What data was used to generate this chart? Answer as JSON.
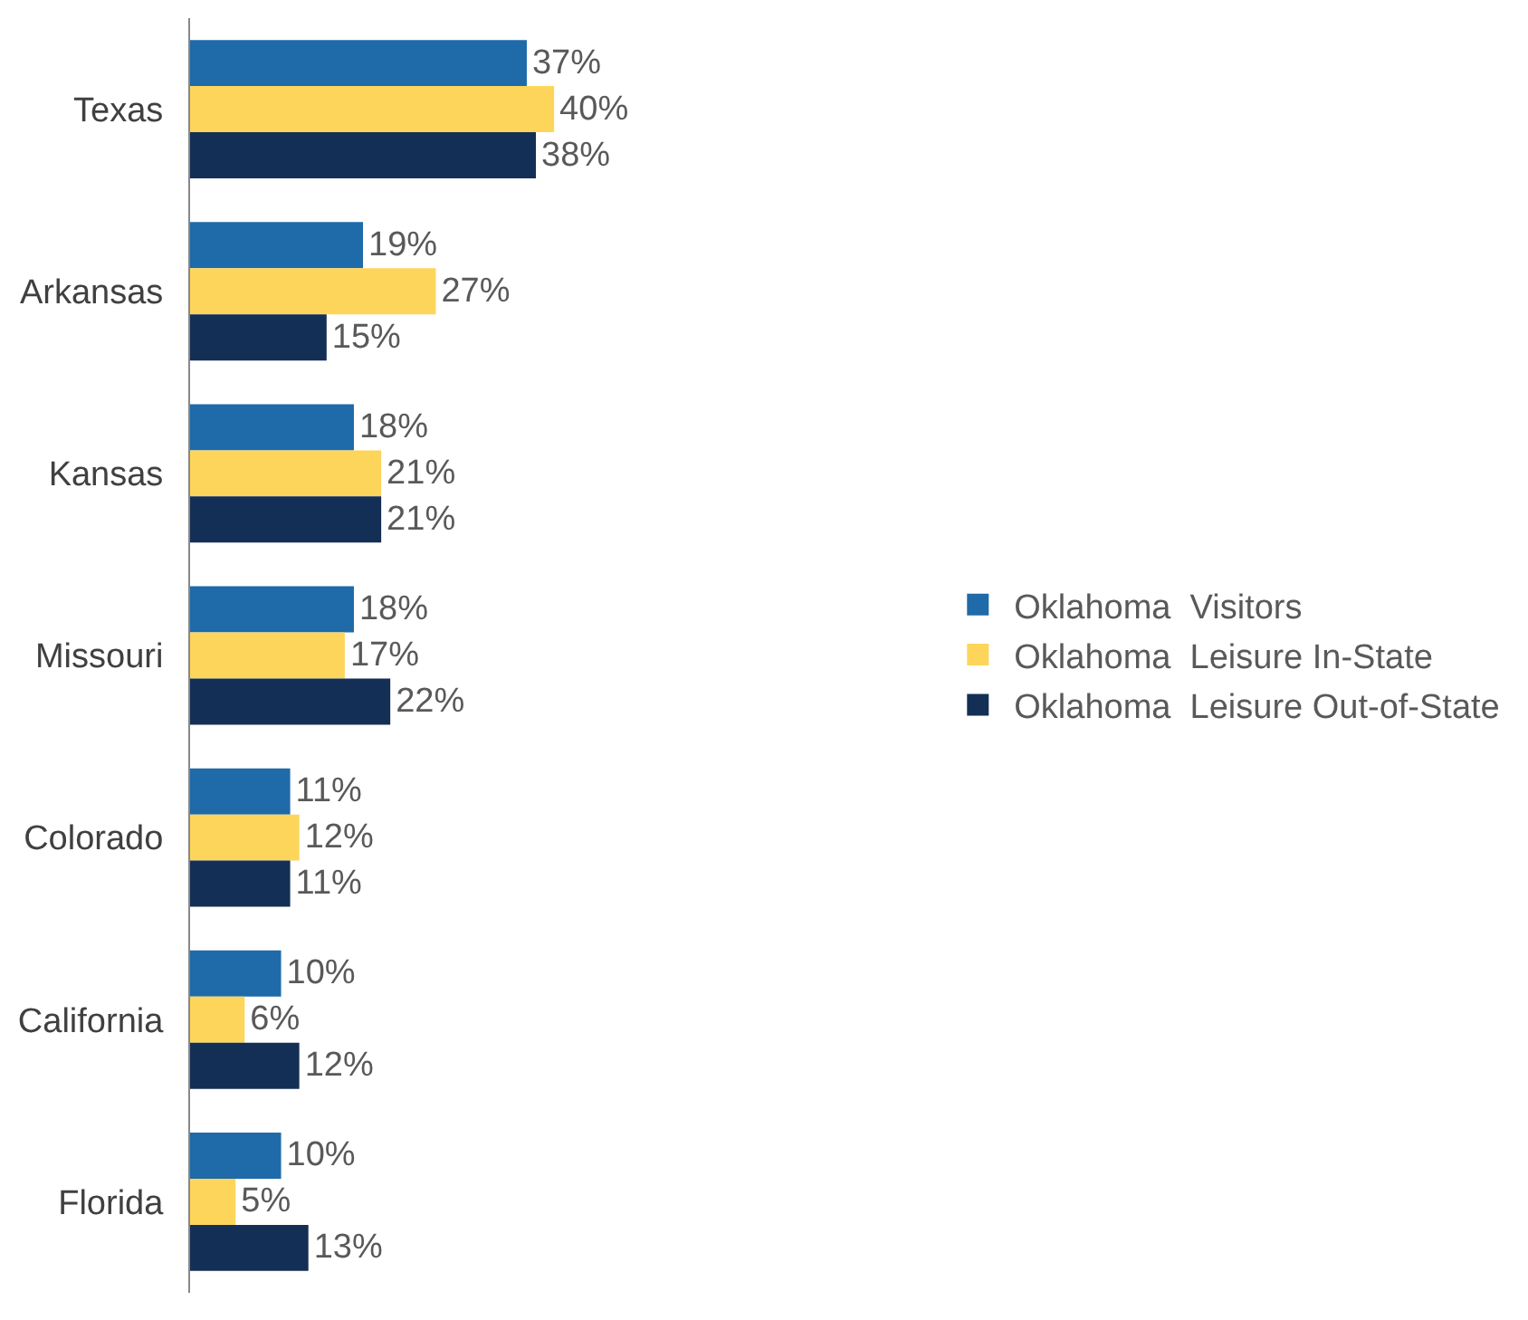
{
  "chart_data": {
    "type": "bar",
    "orientation": "horizontal",
    "categories": [
      "Texas",
      "Arkansas",
      "Kansas",
      "Missouri",
      "Colorado",
      "California",
      "Florida"
    ],
    "series": [
      {
        "name": "Oklahoma  Visitors",
        "color": "#1f6aa8",
        "values": [
          37,
          19,
          18,
          18,
          11,
          10,
          10
        ],
        "value_labels": [
          "37%",
          "19%",
          "18%",
          "18%",
          "11%",
          "10%",
          "10%"
        ]
      },
      {
        "name": "Oklahoma  Leisure In-State",
        "color": "#fdd55a",
        "values": [
          40,
          27,
          21,
          17,
          12,
          6,
          5
        ],
        "value_labels": [
          "40%",
          "27%",
          "21%",
          "17%",
          "12%",
          "6%",
          "5%"
        ]
      },
      {
        "name": "Oklahoma  Leisure Out-of-State",
        "color": "#142f55",
        "values": [
          38,
          15,
          21,
          22,
          11,
          12,
          13
        ],
        "value_labels": [
          "38%",
          "15%",
          "21%",
          "22%",
          "11%",
          "12%",
          "13%"
        ]
      }
    ],
    "tick_labels": "y",
    "grid": false,
    "legend": "right"
  }
}
